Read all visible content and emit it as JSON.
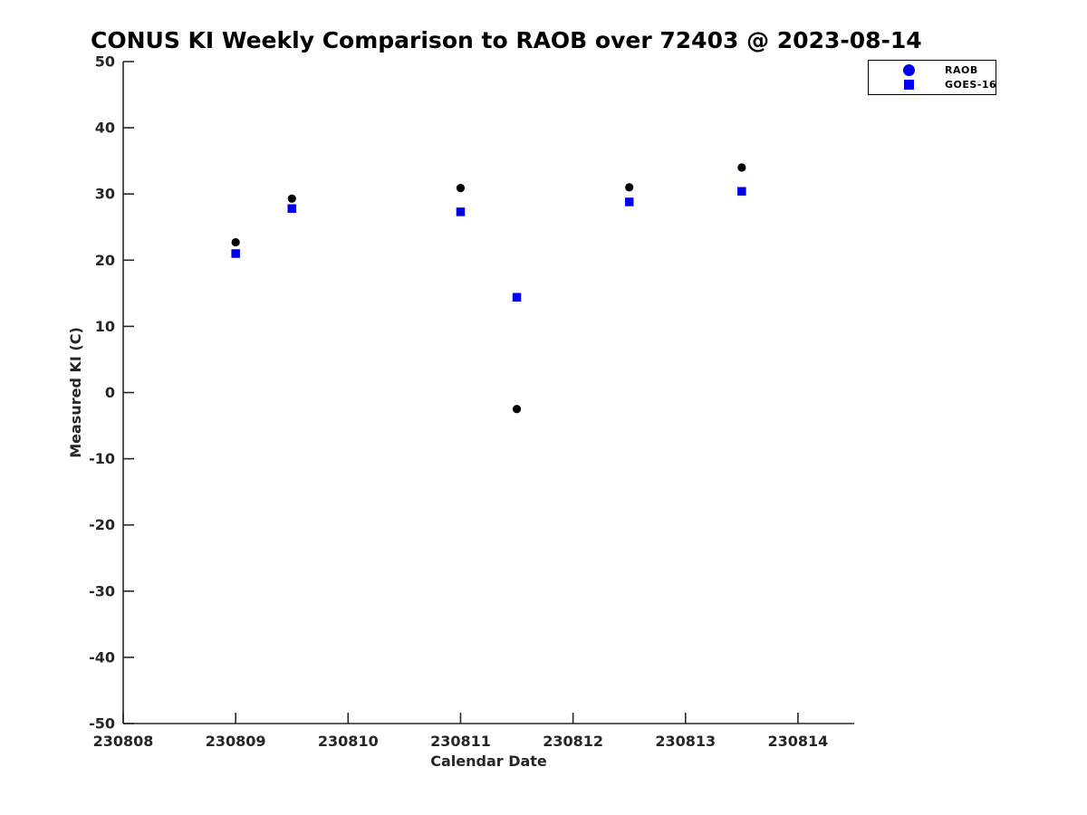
{
  "title": "CONUS KI Weekly Comparison to RAOB over 72403 @ 2023-08-14",
  "legend": {
    "items": [
      {
        "label": "RAOB",
        "marker": "circle",
        "color": "#0000EE"
      },
      {
        "label": "GOES-16",
        "marker": "square",
        "color": "#0000EE"
      }
    ]
  },
  "chart_data": {
    "type": "scatter",
    "title": "CONUS KI Weekly Comparison to RAOB over 72403 @ 2023-08-14",
    "xlabel": "Calendar Date",
    "ylabel": "Measured KI (C)",
    "xlim": [
      230808,
      230814.5
    ],
    "ylim": [
      -50,
      50
    ],
    "xticks": [
      "230808",
      "230809",
      "230810",
      "230811",
      "230812",
      "230813",
      "230814"
    ],
    "yticks": [
      50,
      40,
      30,
      20,
      10,
      0,
      -10,
      -20,
      -30,
      -40,
      -50
    ],
    "grid": false,
    "legend_position": "outside-top-right",
    "axis_color": "#262626",
    "series": [
      {
        "name": "RAOB",
        "marker": "circle",
        "color": "#000000",
        "x": [
          230809.0,
          230809.5,
          230811.0,
          230811.5,
          230812.5,
          230813.5
        ],
        "y": [
          22.7,
          29.3,
          30.9,
          -2.5,
          31.0,
          34.0
        ]
      },
      {
        "name": "GOES-16",
        "marker": "square",
        "color": "#0000EE",
        "x": [
          230809.0,
          230809.5,
          230811.0,
          230811.5,
          230812.5,
          230813.5
        ],
        "y": [
          21.0,
          27.8,
          27.3,
          14.4,
          28.8,
          30.4
        ]
      }
    ]
  }
}
